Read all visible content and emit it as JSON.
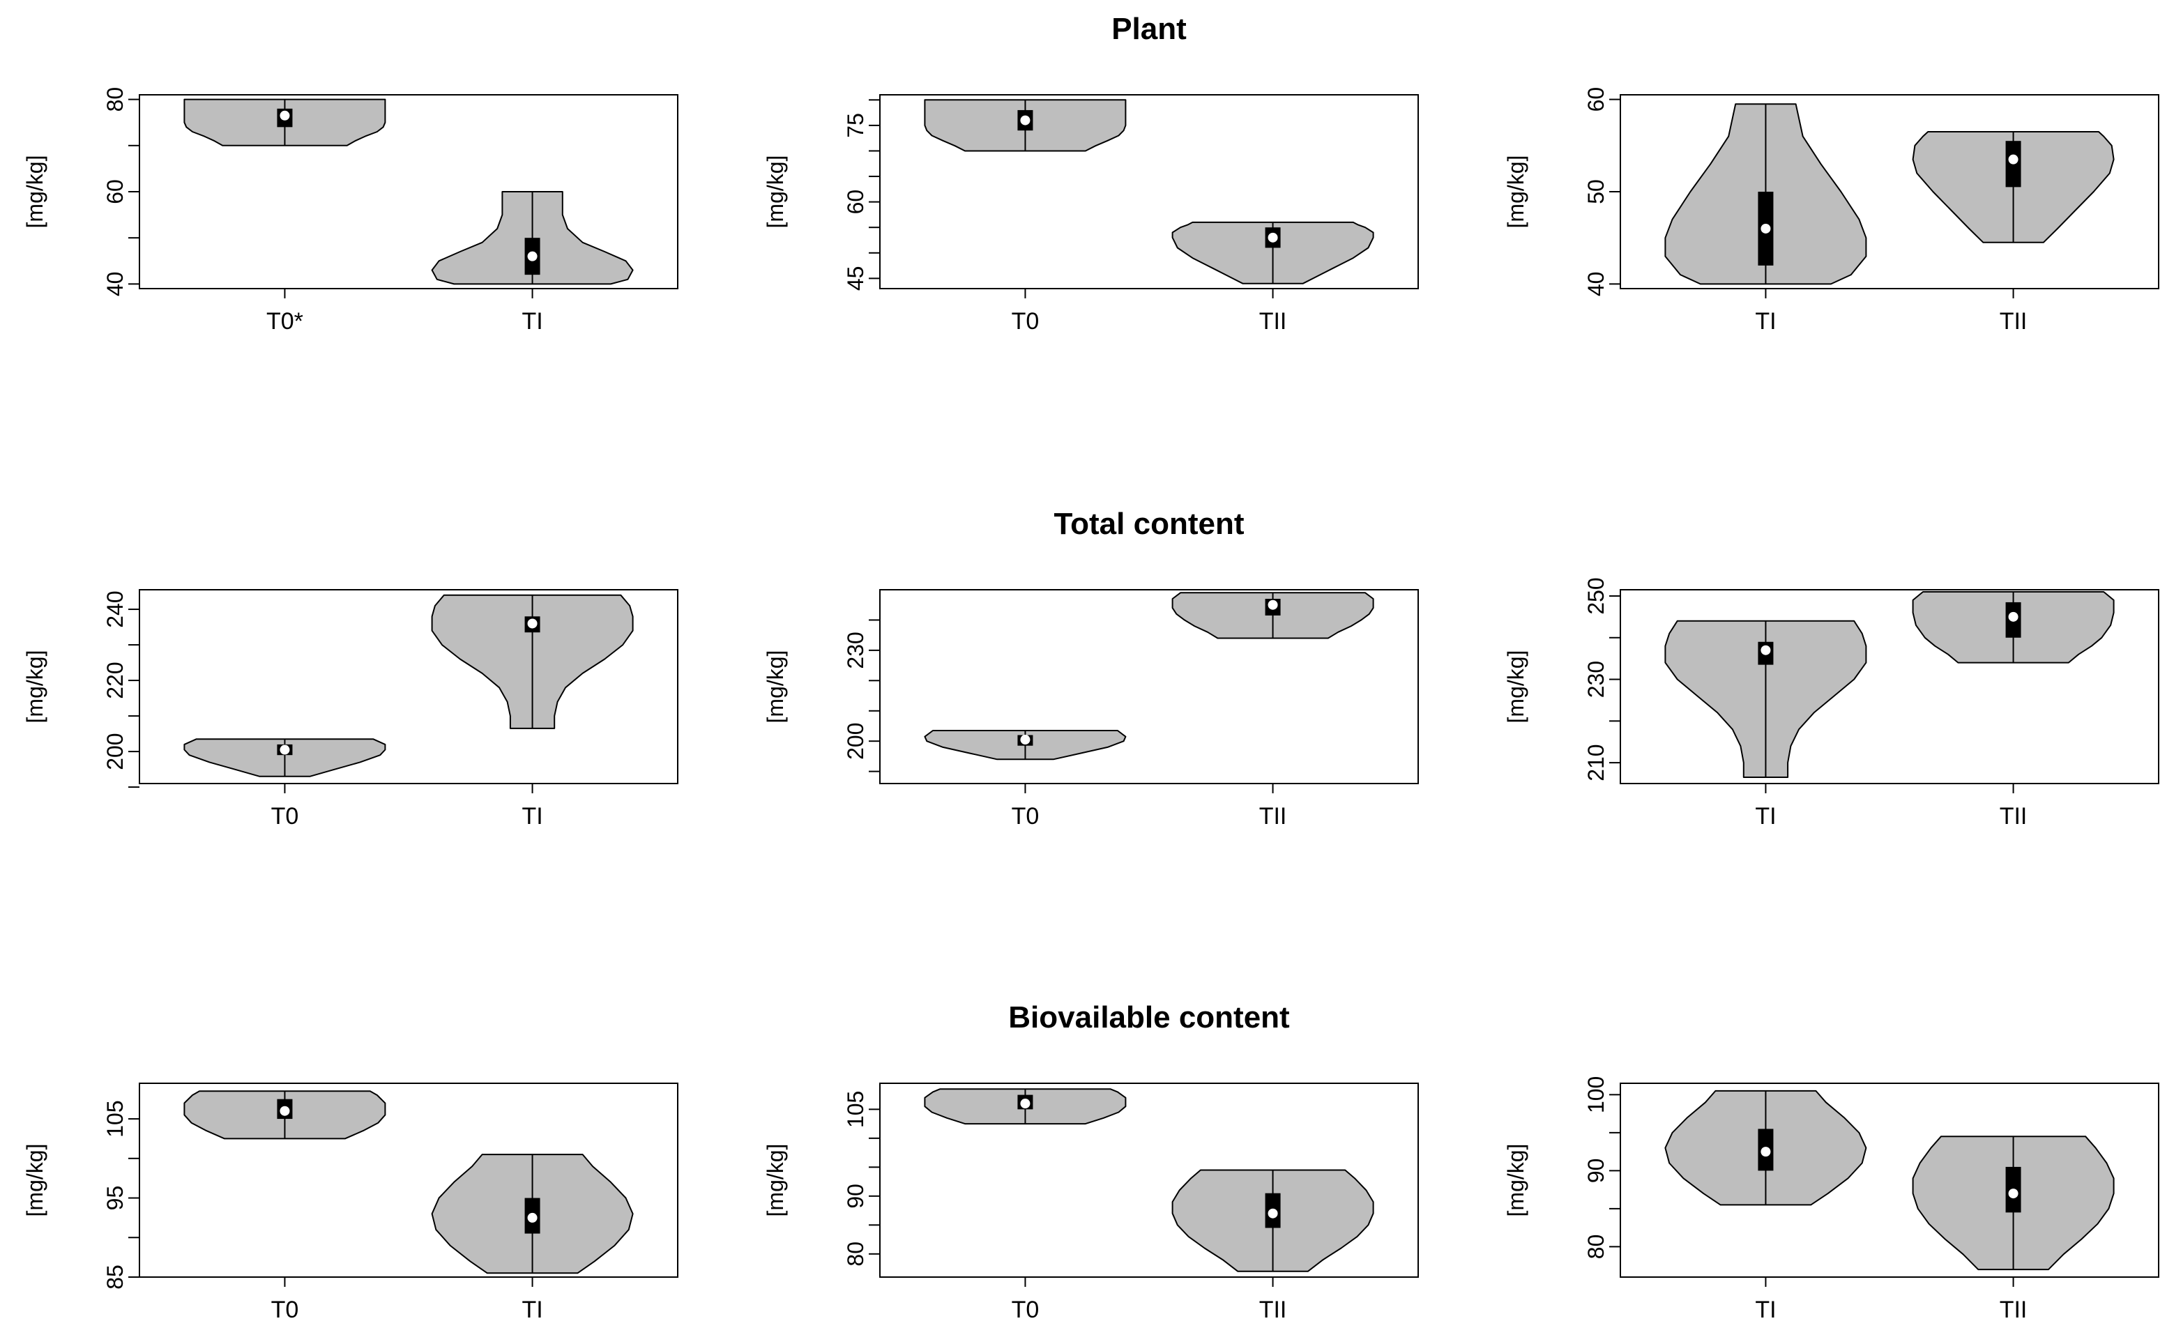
{
  "row_titles": [
    "Plant",
    "Total content",
    "Biovailable content"
  ],
  "colors": {
    "violin_fill": "#bebebe",
    "outline": "#000000",
    "box": "#000000",
    "median_dot": "#ffffff"
  },
  "chart_data": [
    {
      "type": "violin",
      "row": 0,
      "col": 0,
      "ylabel": "[mg/kg]",
      "ylim": [
        39,
        81
      ],
      "yticks": [
        40,
        50,
        60,
        70,
        80
      ],
      "ytick_labels": [
        "40",
        "",
        "60",
        "",
        "80"
      ],
      "categories": [
        "T0*",
        "TI"
      ],
      "violins": [
        {
          "median": 76.5,
          "q1": 74,
          "q3": 78,
          "min": 70,
          "max": 80,
          "profile": [
            [
              70,
              0.62
            ],
            [
              71,
              0.7
            ],
            [
              72,
              0.8
            ],
            [
              73,
              0.92
            ],
            [
              74,
              0.98
            ],
            [
              75,
              1.0
            ],
            [
              76,
              1.0
            ],
            [
              77,
              1.0
            ],
            [
              78,
              1.0
            ],
            [
              79,
              1.0
            ],
            [
              80,
              1.0
            ]
          ]
        },
        {
          "median": 46,
          "q1": 42,
          "q3": 50,
          "min": 40,
          "max": 60,
          "profile": [
            [
              40,
              0.78
            ],
            [
              41,
              0.95
            ],
            [
              43,
              1.0
            ],
            [
              45,
              0.93
            ],
            [
              47,
              0.72
            ],
            [
              49,
              0.5
            ],
            [
              52,
              0.35
            ],
            [
              55,
              0.3
            ],
            [
              58,
              0.3
            ],
            [
              60,
              0.3
            ]
          ]
        }
      ]
    },
    {
      "type": "violin",
      "row": 0,
      "col": 1,
      "ylabel": "[mg/kg]",
      "ylim": [
        43,
        81
      ],
      "yticks": [
        45,
        50,
        55,
        60,
        65,
        70,
        75,
        80
      ],
      "ytick_labels": [
        "45",
        "",
        "",
        "60",
        "",
        "",
        "75",
        ""
      ],
      "categories": [
        "T0",
        "TII"
      ],
      "violins": [
        {
          "median": 76,
          "q1": 74,
          "q3": 78,
          "min": 70,
          "max": 80,
          "profile": [
            [
              70,
              0.6
            ],
            [
              71,
              0.7
            ],
            [
              72,
              0.82
            ],
            [
              73,
              0.93
            ],
            [
              74,
              0.98
            ],
            [
              75,
              1.0
            ],
            [
              77,
              1.0
            ],
            [
              78,
              1.0
            ],
            [
              79,
              1.0
            ],
            [
              80,
              1.0
            ]
          ]
        },
        {
          "median": 53,
          "q1": 51,
          "q3": 55,
          "min": 44,
          "max": 56,
          "profile": [
            [
              44,
              0.3
            ],
            [
              45,
              0.4
            ],
            [
              47,
              0.6
            ],
            [
              49,
              0.8
            ],
            [
              51,
              0.95
            ],
            [
              53,
              1.0
            ],
            [
              54,
              1.0
            ],
            [
              55,
              0.92
            ],
            [
              55.5,
              0.85
            ],
            [
              56,
              0.8
            ]
          ]
        }
      ]
    },
    {
      "type": "violin",
      "row": 0,
      "col": 2,
      "ylabel": "[mg/kg]",
      "ylim": [
        39.5,
        60.5
      ],
      "yticks": [
        40,
        50,
        60
      ],
      "ytick_labels": [
        "40",
        "50",
        "60"
      ],
      "categories": [
        "TI",
        "TII"
      ],
      "violins": [
        {
          "median": 46,
          "q1": 42,
          "q3": 50,
          "min": 40,
          "max": 59.5,
          "profile": [
            [
              40,
              0.65
            ],
            [
              41,
              0.85
            ],
            [
              43,
              1.0
            ],
            [
              45,
              1.0
            ],
            [
              47,
              0.93
            ],
            [
              50,
              0.75
            ],
            [
              53,
              0.55
            ],
            [
              56,
              0.37
            ],
            [
              59.5,
              0.3
            ]
          ]
        },
        {
          "median": 53.5,
          "q1": 50.5,
          "q3": 55.5,
          "min": 44.5,
          "max": 56.5,
          "profile": [
            [
              44.5,
              0.3
            ],
            [
              46,
              0.44
            ],
            [
              48,
              0.62
            ],
            [
              50,
              0.8
            ],
            [
              52,
              0.96
            ],
            [
              53.5,
              1.0
            ],
            [
              55,
              0.98
            ],
            [
              56,
              0.9
            ],
            [
              56.5,
              0.85
            ]
          ]
        }
      ]
    },
    {
      "type": "violin",
      "row": 1,
      "col": 0,
      "ylabel": "[mg/kg]",
      "ylim": [
        191,
        245.5
      ],
      "yticks": [
        190,
        200,
        210,
        220,
        230,
        240
      ],
      "ytick_labels": [
        "",
        "200",
        "",
        "220",
        "",
        "240"
      ],
      "categories": [
        "T0",
        "TI"
      ],
      "violins": [
        {
          "median": 200.5,
          "q1": 199,
          "q3": 202,
          "min": 193,
          "max": 203.5,
          "profile": [
            [
              193,
              0.25
            ],
            [
              195,
              0.5
            ],
            [
              197,
              0.75
            ],
            [
              199,
              0.95
            ],
            [
              200.5,
              1.0
            ],
            [
              202,
              1.0
            ],
            [
              203.5,
              0.88
            ]
          ]
        },
        {
          "median": 236,
          "q1": 233.5,
          "q3": 238,
          "min": 206.5,
          "max": 244,
          "profile": [
            [
              206.5,
              0.22
            ],
            [
              210,
              0.22
            ],
            [
              214,
              0.25
            ],
            [
              218,
              0.33
            ],
            [
              222,
              0.5
            ],
            [
              226,
              0.72
            ],
            [
              230,
              0.9
            ],
            [
              234,
              1.0
            ],
            [
              238,
              1.0
            ],
            [
              241,
              0.97
            ],
            [
              244,
              0.88
            ]
          ]
        }
      ]
    },
    {
      "type": "violin",
      "row": 1,
      "col": 1,
      "ylabel": "[mg/kg]",
      "ylim": [
        186,
        250
      ],
      "yticks": [
        190,
        200,
        210,
        220,
        230,
        240
      ],
      "ytick_labels": [
        "",
        "200",
        "",
        "",
        "230",
        ""
      ],
      "categories": [
        "T0",
        "TII"
      ],
      "violins": [
        {
          "median": 200.5,
          "q1": 198.5,
          "q3": 202,
          "min": 194,
          "max": 203.5,
          "profile": [
            [
              194,
              0.28
            ],
            [
              196,
              0.55
            ],
            [
              198,
              0.82
            ],
            [
              200,
              0.98
            ],
            [
              201.5,
              1.0
            ],
            [
              203.5,
              0.92
            ]
          ]
        },
        {
          "median": 245,
          "q1": 241.5,
          "q3": 247,
          "min": 234,
          "max": 249,
          "profile": [
            [
              234,
              0.55
            ],
            [
              236,
              0.65
            ],
            [
              238,
              0.78
            ],
            [
              240,
              0.88
            ],
            [
              242,
              0.96
            ],
            [
              244,
              1.0
            ],
            [
              247,
              1.0
            ],
            [
              249,
              0.92
            ]
          ]
        }
      ]
    },
    {
      "type": "violin",
      "row": 1,
      "col": 2,
      "ylabel": "[mg/kg]",
      "ylim": [
        205,
        251.5
      ],
      "yticks": [
        210,
        220,
        230,
        240,
        250
      ],
      "ytick_labels": [
        "210",
        "",
        "230",
        "",
        "250"
      ],
      "categories": [
        "TI",
        "TII"
      ],
      "violins": [
        {
          "median": 237,
          "q1": 233.5,
          "q3": 239,
          "min": 206.5,
          "max": 244,
          "profile": [
            [
              206.5,
              0.22
            ],
            [
              210,
              0.22
            ],
            [
              214,
              0.25
            ],
            [
              218,
              0.33
            ],
            [
              222,
              0.48
            ],
            [
              226,
              0.68
            ],
            [
              230,
              0.88
            ],
            [
              234,
              1.0
            ],
            [
              238,
              1.0
            ],
            [
              241,
              0.96
            ],
            [
              244,
              0.88
            ]
          ]
        },
        {
          "median": 245,
          "q1": 240,
          "q3": 248.5,
          "min": 234,
          "max": 251,
          "profile": [
            [
              234,
              0.55
            ],
            [
              236,
              0.65
            ],
            [
              238,
              0.78
            ],
            [
              240,
              0.88
            ],
            [
              243,
              0.97
            ],
            [
              246,
              1.0
            ],
            [
              249,
              1.0
            ],
            [
              251,
              0.9
            ]
          ]
        }
      ]
    },
    {
      "type": "violin",
      "row": 2,
      "col": 0,
      "ylabel": "[mg/kg]",
      "ylim": [
        85,
        109.5
      ],
      "yticks": [
        85,
        90,
        95,
        100,
        105
      ],
      "ytick_labels": [
        "85",
        "",
        "95",
        "",
        "105"
      ],
      "categories": [
        "T0",
        "TI"
      ],
      "violins": [
        {
          "median": 106,
          "q1": 105,
          "q3": 107.5,
          "min": 102.5,
          "max": 108.5,
          "profile": [
            [
              102.5,
              0.6
            ],
            [
              103.5,
              0.78
            ],
            [
              104.5,
              0.93
            ],
            [
              105.5,
              1.0
            ],
            [
              107,
              1.0
            ],
            [
              108,
              0.92
            ],
            [
              108.5,
              0.85
            ]
          ]
        },
        {
          "median": 92.5,
          "q1": 90.5,
          "q3": 95,
          "min": 85.5,
          "max": 100.5,
          "profile": [
            [
              85.5,
              0.45
            ],
            [
              87,
              0.62
            ],
            [
              89,
              0.82
            ],
            [
              91,
              0.96
            ],
            [
              93,
              1.0
            ],
            [
              95,
              0.93
            ],
            [
              97,
              0.78
            ],
            [
              99,
              0.6
            ],
            [
              100.5,
              0.5
            ]
          ]
        }
      ]
    },
    {
      "type": "violin",
      "row": 2,
      "col": 1,
      "ylabel": "[mg/kg]",
      "ylim": [
        76,
        109.5
      ],
      "yticks": [
        80,
        85,
        90,
        95,
        100,
        105
      ],
      "ytick_labels": [
        "80",
        "",
        "90",
        "",
        "",
        "105"
      ],
      "categories": [
        "T0",
        "TII"
      ],
      "violins": [
        {
          "median": 106,
          "q1": 105,
          "q3": 107.5,
          "min": 102.5,
          "max": 108.5,
          "profile": [
            [
              102.5,
              0.6
            ],
            [
              103.5,
              0.78
            ],
            [
              104.5,
              0.93
            ],
            [
              105.5,
              1.0
            ],
            [
              107,
              1.0
            ],
            [
              108,
              0.92
            ],
            [
              108.5,
              0.85
            ]
          ]
        },
        {
          "median": 87,
          "q1": 84.5,
          "q3": 90.5,
          "min": 77,
          "max": 94.5,
          "profile": [
            [
              77,
              0.35
            ],
            [
              79,
              0.5
            ],
            [
              81,
              0.68
            ],
            [
              83,
              0.84
            ],
            [
              85,
              0.95
            ],
            [
              87,
              1.0
            ],
            [
              89,
              1.0
            ],
            [
              91,
              0.93
            ],
            [
              93,
              0.82
            ],
            [
              94.5,
              0.72
            ]
          ]
        }
      ]
    },
    {
      "type": "violin",
      "row": 2,
      "col": 2,
      "ylabel": "[mg/kg]",
      "ylim": [
        76,
        101.5
      ],
      "yticks": [
        80,
        85,
        90,
        95,
        100
      ],
      "ytick_labels": [
        "80",
        "",
        "90",
        "",
        "100"
      ],
      "categories": [
        "TI",
        "TII"
      ],
      "violins": [
        {
          "median": 92.5,
          "q1": 90,
          "q3": 95.5,
          "min": 85.5,
          "max": 100.5,
          "profile": [
            [
              85.5,
              0.45
            ],
            [
              87,
              0.62
            ],
            [
              89,
              0.82
            ],
            [
              91,
              0.96
            ],
            [
              93,
              1.0
            ],
            [
              95,
              0.93
            ],
            [
              97,
              0.78
            ],
            [
              99,
              0.6
            ],
            [
              100.5,
              0.5
            ]
          ]
        },
        {
          "median": 87,
          "q1": 84.5,
          "q3": 90.5,
          "min": 77,
          "max": 94.5,
          "profile": [
            [
              77,
              0.35
            ],
            [
              79,
              0.5
            ],
            [
              81,
              0.68
            ],
            [
              83,
              0.84
            ],
            [
              85,
              0.95
            ],
            [
              87,
              1.0
            ],
            [
              89,
              1.0
            ],
            [
              91,
              0.93
            ],
            [
              93,
              0.82
            ],
            [
              94.5,
              0.72
            ]
          ]
        }
      ]
    }
  ]
}
